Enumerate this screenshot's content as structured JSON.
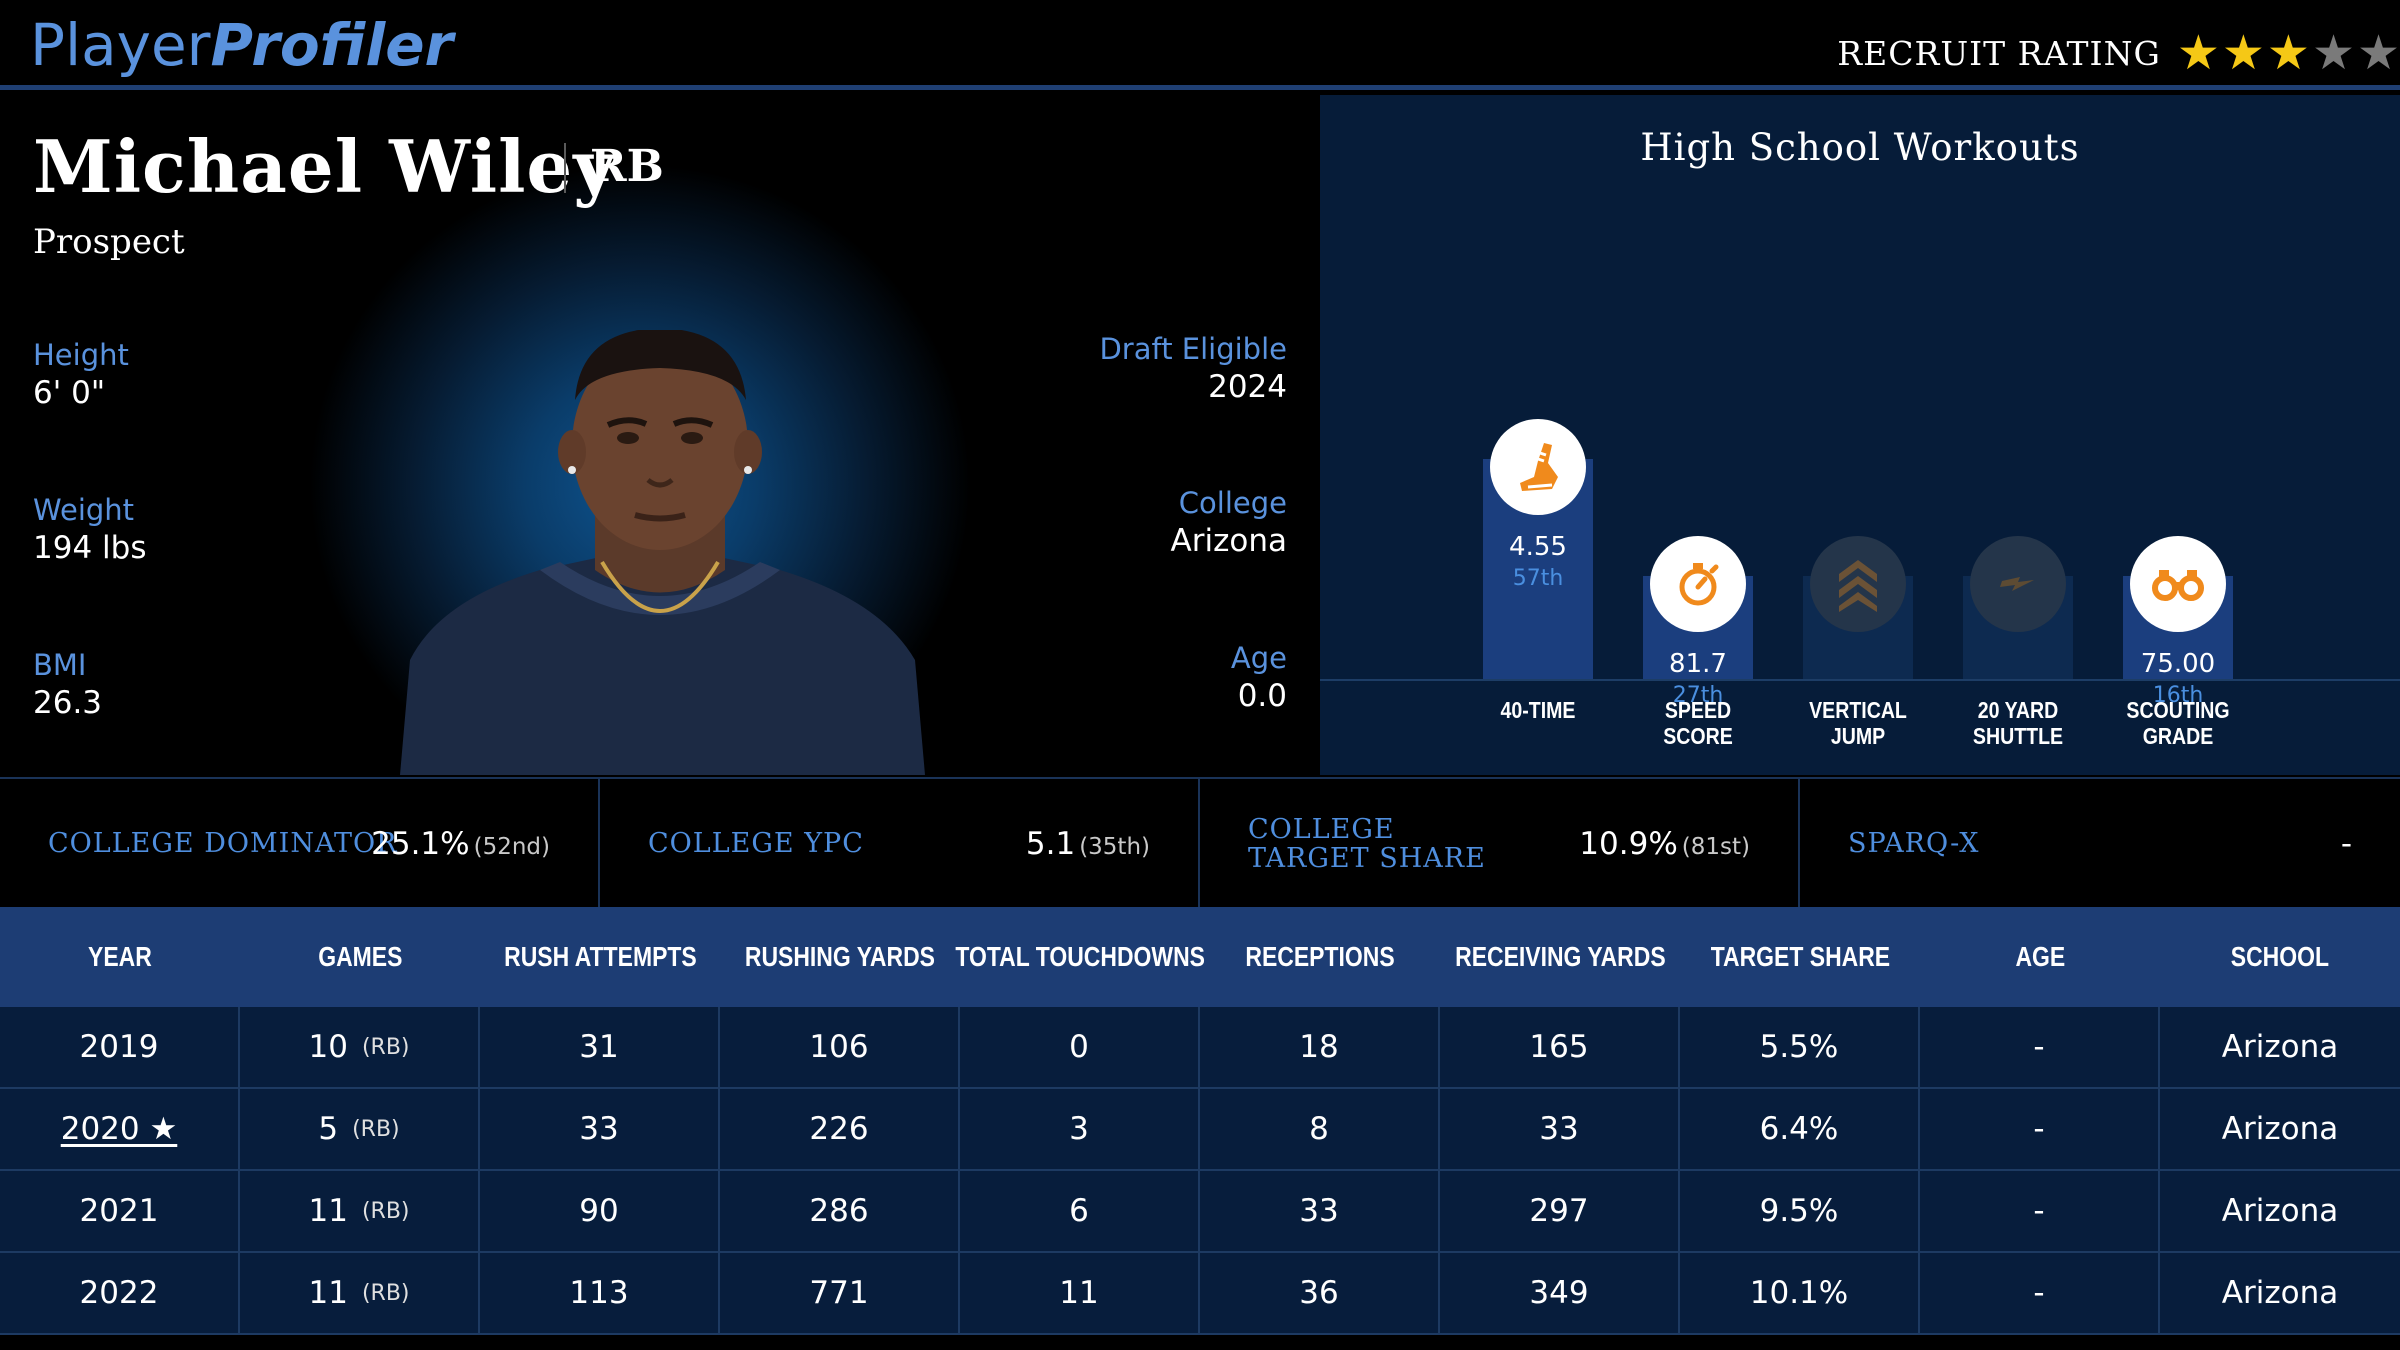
{
  "header": {
    "logo_part1": "Player",
    "logo_part2": "Profiler",
    "recruit_label": "RECRUIT RATING",
    "recruit_stars": 3,
    "recruit_stars_max": 5,
    "star_color_on": "#f5c816",
    "star_color_off": "#7a7a7a"
  },
  "player": {
    "name": "Michael Wiley",
    "position": "RB",
    "status": "Prospect",
    "height_label": "Height",
    "height": "6' 0\"",
    "weight_label": "Weight",
    "weight": "194 lbs",
    "bmi_label": "BMI",
    "bmi": "26.3",
    "draft_label": "Draft Eligible",
    "draft": "2024",
    "college_label": "College",
    "college": "Arizona",
    "age_label": "Age",
    "age": "0.0"
  },
  "workouts": {
    "title": "High School Workouts",
    "items": [
      {
        "label_line1": "40-TIME",
        "label_line2": "",
        "value": "4.55",
        "percentile": "57th",
        "percentile_num": 57,
        "icon": "running-shoe-icon",
        "has_data": true
      },
      {
        "label_line1": "SPEED",
        "label_line2": "SCORE",
        "value": "81.7",
        "percentile": "27th",
        "percentile_num": 27,
        "icon": "stopwatch-icon",
        "has_data": true
      },
      {
        "label_line1": "VERTICAL",
        "label_line2": "JUMP",
        "value": "",
        "percentile": "",
        "percentile_num": 27,
        "icon": "chevrons-up-icon",
        "has_data": false
      },
      {
        "label_line1": "20 YARD",
        "label_line2": "SHUTTLE",
        "value": "",
        "percentile": "",
        "percentile_num": 27,
        "icon": "lightning-icon",
        "has_data": false
      },
      {
        "label_line1": "SCOUTING",
        "label_line2": "GRADE",
        "value": "75.00",
        "percentile": "16th",
        "percentile_num": 16,
        "icon": "binoculars-icon",
        "has_data": true
      }
    ]
  },
  "metrics": [
    {
      "label": "COLLEGE DOMINATOR",
      "value": "25.1%",
      "rank": "(52nd)"
    },
    {
      "label": "COLLEGE YPC",
      "value": "5.1",
      "rank": "(35th)"
    },
    {
      "label": "COLLEGE TARGET SHARE",
      "value": "10.9%",
      "rank": "(81st)"
    },
    {
      "label": "SPARQ-X",
      "value": "-",
      "rank": ""
    }
  ],
  "table": {
    "headers": [
      "YEAR",
      "GAMES",
      "RUSH ATTEMPTS",
      "RUSHING YARDS",
      "TOTAL TOUCHDOWNS",
      "RECEPTIONS",
      "RECEIVING YARDS",
      "TARGET SHARE",
      "AGE",
      "SCHOOL"
    ],
    "rows": [
      {
        "year": "2019",
        "games": "10",
        "pos": "(RB)",
        "rush_att": "31",
        "rush_yds": "106",
        "tds": "0",
        "rec": "18",
        "rec_yds": "165",
        "target_share": "5.5%",
        "age": "-",
        "school": "Arizona",
        "linked": false
      },
      {
        "year": "2020 ★",
        "games": "5",
        "pos": "(RB)",
        "rush_att": "33",
        "rush_yds": "226",
        "tds": "3",
        "rec": "8",
        "rec_yds": "33",
        "target_share": "6.4%",
        "age": "-",
        "school": "Arizona",
        "linked": true
      },
      {
        "year": "2021",
        "games": "11",
        "pos": "(RB)",
        "rush_att": "90",
        "rush_yds": "286",
        "tds": "6",
        "rec": "33",
        "rec_yds": "297",
        "target_share": "9.5%",
        "age": "-",
        "school": "Arizona",
        "linked": false
      },
      {
        "year": "2022",
        "games": "11",
        "pos": "(RB)",
        "rush_att": "113",
        "rush_yds": "771",
        "tds": "11",
        "rec": "36",
        "rec_yds": "349",
        "target_share": "10.1%",
        "age": "-",
        "school": "Arizona",
        "linked": false
      }
    ]
  }
}
